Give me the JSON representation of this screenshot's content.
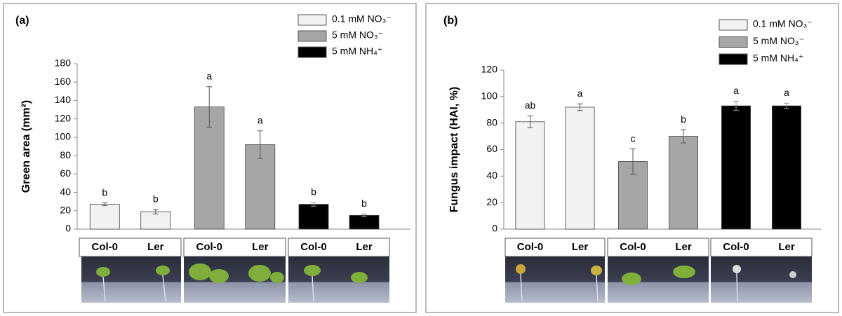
{
  "chart_data": [
    {
      "type": "bar",
      "panel_label": "(a)",
      "ylabel": "Green area (mm²)",
      "categories": [
        "Col-0",
        "Ler",
        "Col-0",
        "Ler",
        "Col-0",
        "Ler"
      ],
      "ylim": [
        0,
        180
      ],
      "yticks": [
        0,
        20,
        40,
        60,
        80,
        100,
        120,
        140,
        160,
        180
      ],
      "series": [
        {
          "name": "0.1 mM NO₃⁻",
          "color": "#f2f2f2",
          "values": [
            27,
            19,
            null,
            null,
            null,
            null
          ],
          "errors": [
            1.5,
            2.5,
            null,
            null,
            null,
            null
          ],
          "annotations": [
            "b",
            "b",
            null,
            null,
            null,
            null
          ]
        },
        {
          "name": "5 mM NO₃⁻",
          "color": "#a6a6a6",
          "values": [
            null,
            null,
            133,
            92,
            null,
            null
          ],
          "errors": [
            null,
            null,
            22,
            15,
            null,
            null
          ],
          "annotations": [
            null,
            null,
            "a",
            "a",
            null,
            null
          ]
        },
        {
          "name": "5 mM NH₄⁺",
          "color": "#000000",
          "values": [
            null,
            null,
            null,
            null,
            27,
            15
          ],
          "errors": [
            null,
            null,
            null,
            null,
            2,
            1.5
          ],
          "annotations": [
            null,
            null,
            null,
            null,
            "b",
            "b"
          ]
        }
      ]
    },
    {
      "type": "bar",
      "panel_label": "(b)",
      "ylabel": "Fungus impact (HAI, %)",
      "categories": [
        "Col-0",
        "Ler",
        "Col-0",
        "Ler",
        "Col-0",
        "Ler"
      ],
      "ylim": [
        0,
        120
      ],
      "yticks": [
        0,
        20,
        40,
        60,
        80,
        100,
        120
      ],
      "series": [
        {
          "name": "0.1 mM NO₃⁻",
          "color": "#f2f2f2",
          "values": [
            81,
            92,
            null,
            null,
            null,
            null
          ],
          "errors": [
            4.5,
            2.5,
            null,
            null,
            null,
            null
          ],
          "annotations": [
            "ab",
            "a",
            null,
            null,
            null,
            null
          ]
        },
        {
          "name": "5 mM NO₃⁻",
          "color": "#a6a6a6",
          "values": [
            null,
            null,
            51,
            70,
            null,
            null
          ],
          "errors": [
            null,
            null,
            9.5,
            5,
            null,
            null
          ],
          "annotations": [
            null,
            null,
            "c",
            "b",
            null,
            null
          ]
        },
        {
          "name": "5 mM NH₄⁺",
          "color": "#000000",
          "values": [
            null,
            null,
            null,
            null,
            93,
            93
          ],
          "errors": [
            null,
            null,
            null,
            null,
            3.5,
            2
          ],
          "annotations": [
            null,
            null,
            null,
            null,
            "a",
            "a"
          ]
        }
      ]
    }
  ]
}
